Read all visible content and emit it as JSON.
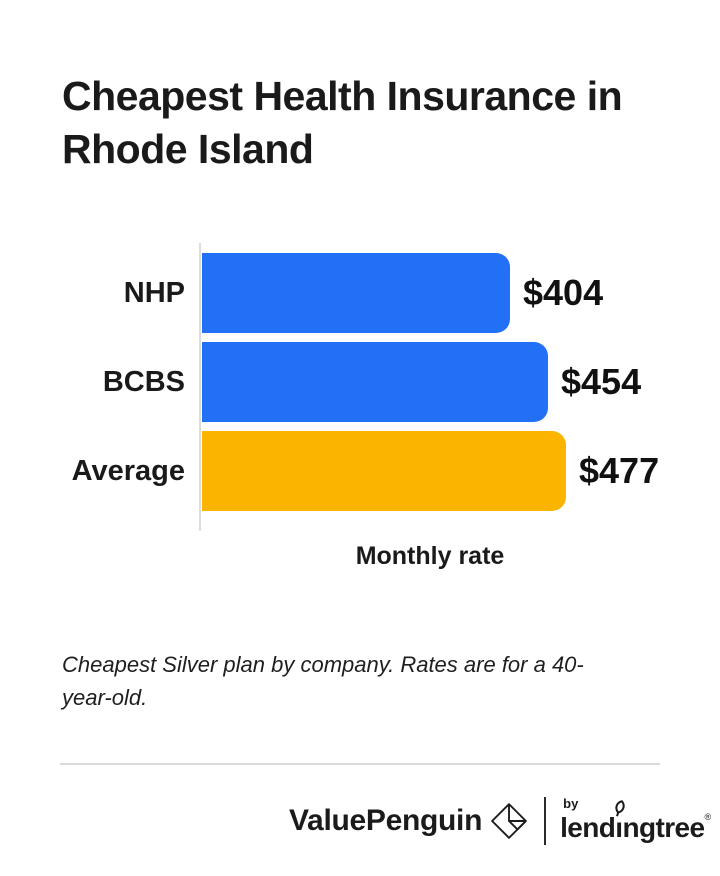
{
  "header": {
    "title": "Cheapest Health Insurance in Rhode Island"
  },
  "chart_data": {
    "type": "bar",
    "orientation": "horizontal",
    "title": "Cheapest Health Insurance in Rhode Island",
    "categories": [
      "NHP",
      "BCBS",
      "Average"
    ],
    "values": [
      404,
      454,
      477
    ],
    "value_labels": [
      "$404",
      "$454",
      "$477"
    ],
    "bar_colors": [
      "#2170F6",
      "#2170F6",
      "#FBB400"
    ],
    "xlabel": "Monthly rate",
    "ylabel": "",
    "xlim": [
      0,
      477
    ],
    "grid": false,
    "legend": "none"
  },
  "footnote": {
    "text": "Cheapest Silver plan by company. Rates are for a 40-year-old."
  },
  "footer": {
    "valuepenguin": "ValuePenguin",
    "by": "by",
    "lendingtree": "lendingtree",
    "lendingtree_parts": {
      "pre": "lend",
      "i": "ı",
      "post": "ngtree"
    },
    "registered": "®"
  },
  "colors": {
    "background": "#ffffff",
    "bar_blue": "#2170F6",
    "bar_yellow": "#FBB400",
    "text": "#1a1a1a",
    "axis_line": "#dcdcdc",
    "divider": "#d9d9d9"
  }
}
